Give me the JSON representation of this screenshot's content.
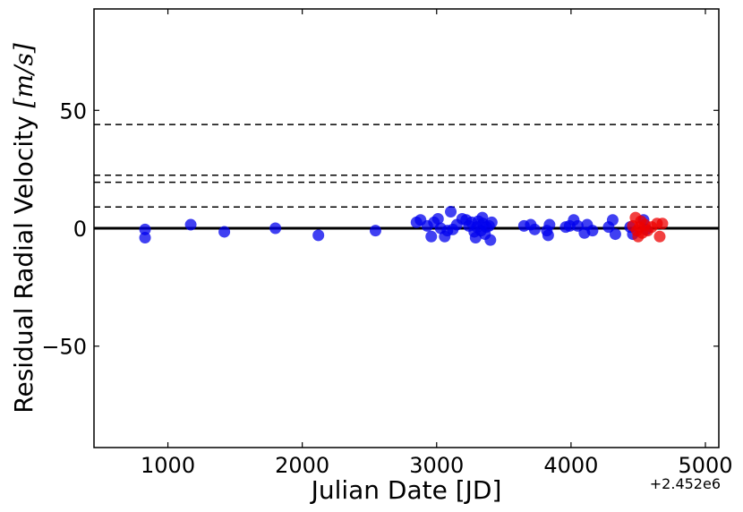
{
  "chart_data": {
    "type": "scatter",
    "title": "",
    "xlabel": "Julian Date [JD]",
    "ylabel": "Residual Radial Velocity",
    "ylabel_unit": "[m/s]",
    "x_offset_label": "+2.452e6",
    "xlim": [
      450,
      5100
    ],
    "ylim": [
      -93,
      93
    ],
    "xticks": [
      1000,
      2000,
      3000,
      4000,
      5000
    ],
    "xtick_labels": [
      "1000",
      "2000",
      "3000",
      "4000",
      "5000"
    ],
    "yticks": [
      -50,
      0,
      50
    ],
    "ytick_labels": [
      "−50",
      "0",
      "50"
    ],
    "grid": false,
    "legend": false,
    "reference_lines": {
      "solid_y": 0,
      "dashed_y": [
        44,
        22.5,
        19.5,
        9
      ]
    },
    "colors": {
      "series_blue": "#0000ee",
      "series_red": "#ee0000"
    },
    "series": [
      {
        "color": "#0000ee",
        "points": [
          [
            830,
            -0.5
          ],
          [
            830,
            -4
          ],
          [
            1170,
            1.5
          ],
          [
            1420,
            -1.5
          ],
          [
            1800,
            0
          ],
          [
            2120,
            -3
          ],
          [
            2545,
            -1
          ],
          [
            2850,
            2.5
          ],
          [
            2880,
            3.5
          ],
          [
            2930,
            1
          ],
          [
            2960,
            -3.5
          ],
          [
            2980,
            2.5
          ],
          [
            3010,
            4
          ],
          [
            3030,
            0
          ],
          [
            3060,
            -3.5
          ],
          [
            3080,
            -1
          ],
          [
            3105,
            7
          ],
          [
            3120,
            -0.5
          ],
          [
            3150,
            1.5
          ],
          [
            3190,
            4
          ],
          [
            3220,
            3.5
          ],
          [
            3240,
            1
          ],
          [
            3260,
            2.5
          ],
          [
            3280,
            -1.5
          ],
          [
            3290,
            -4
          ],
          [
            3300,
            0.5
          ],
          [
            3310,
            3
          ],
          [
            3330,
            -1
          ],
          [
            3340,
            4.5
          ],
          [
            3345,
            2
          ],
          [
            3360,
            -2.5
          ],
          [
            3370,
            0.5
          ],
          [
            3390,
            1
          ],
          [
            3400,
            -5
          ],
          [
            3410,
            2.5
          ],
          [
            3650,
            1
          ],
          [
            3700,
            1.5
          ],
          [
            3730,
            -0.5
          ],
          [
            3820,
            -1
          ],
          [
            3830,
            -3
          ],
          [
            3840,
            1.5
          ],
          [
            3960,
            0.5
          ],
          [
            3990,
            1
          ],
          [
            4020,
            3.5
          ],
          [
            4050,
            1
          ],
          [
            4100,
            -2
          ],
          [
            4120,
            1.5
          ],
          [
            4160,
            -1
          ],
          [
            4280,
            0.5
          ],
          [
            4310,
            3.5
          ],
          [
            4330,
            -2.5
          ],
          [
            4440,
            0.5
          ],
          [
            4460,
            -2.5
          ],
          [
            4540,
            3.5
          ],
          [
            4560,
            -0.5
          ]
        ]
      },
      {
        "color": "#ee0000",
        "points": [
          [
            4460,
            1
          ],
          [
            4480,
            4.5
          ],
          [
            4490,
            -1
          ],
          [
            4500,
            -3.5
          ],
          [
            4510,
            0.5
          ],
          [
            4520,
            3
          ],
          [
            4530,
            -2
          ],
          [
            4550,
            1.5
          ],
          [
            4570,
            -1
          ],
          [
            4600,
            0.5
          ],
          [
            4640,
            2
          ],
          [
            4660,
            -3.5
          ],
          [
            4680,
            2
          ]
        ]
      }
    ]
  }
}
